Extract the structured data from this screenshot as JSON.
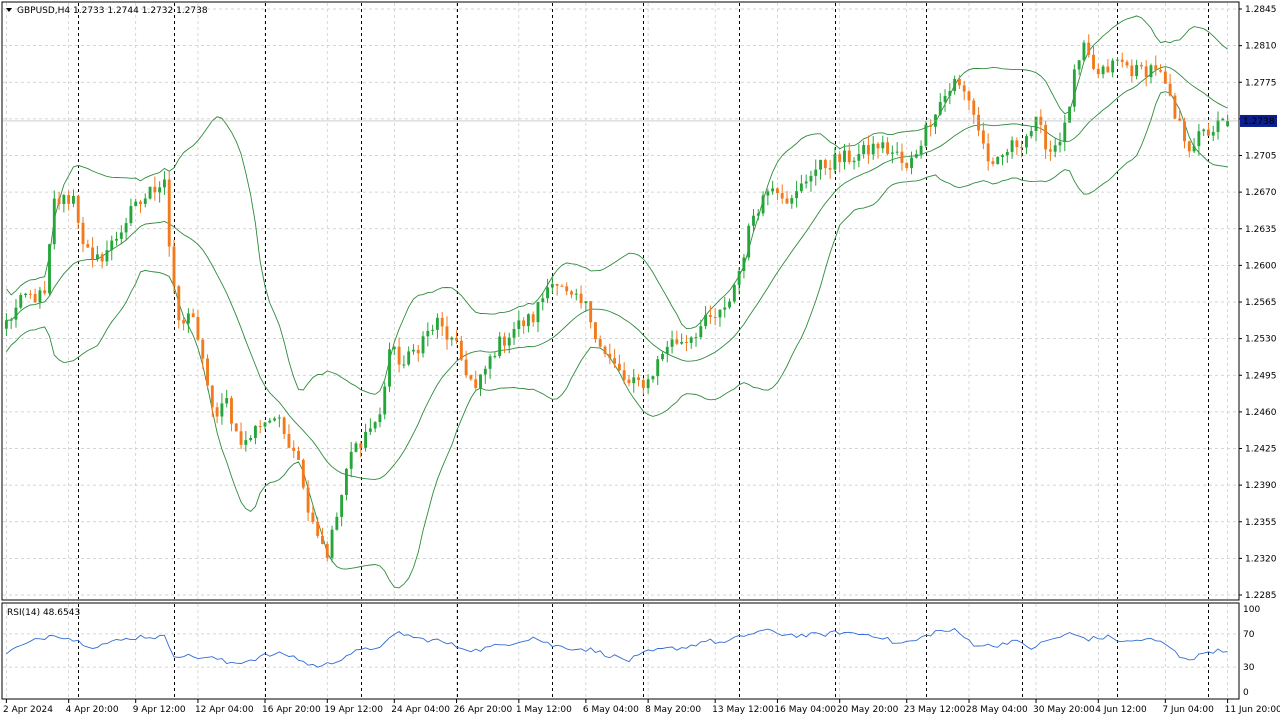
{
  "header": {
    "symbol_line": "GBPUSD,H4  1.2733 1.2744 1.2732 1.2738"
  },
  "rsi_panel": {
    "label": "RSI(14) 48.6543"
  },
  "colors": {
    "bull": "#26a63a",
    "bear": "#f27a1c",
    "band": "#2e8b3d",
    "rsi_line": "#2f6bd6",
    "grid": "#c8c8c8",
    "vline": "#000000",
    "price_tag_bg": "#0a1e8c",
    "price_tag_text": "#ffffff"
  },
  "chart_data": [
    {
      "type": "candlestick",
      "title": "GBPUSD,H4",
      "timeframe": "H4",
      "last_quote": {
        "open": 1.2733,
        "high": 1.2744,
        "low": 1.2732,
        "close": 1.2738
      },
      "current_price_label": "1.2738",
      "ylim": [
        1.2285,
        1.2845
      ],
      "y_ticks": [
        "1.2845",
        "1.2810",
        "1.2775",
        "1.2740",
        "1.2705",
        "1.2670",
        "1.2635",
        "1.2600",
        "1.2565",
        "1.2530",
        "1.2495",
        "1.2460",
        "1.2425",
        "1.2390",
        "1.2355",
        "1.2320",
        "1.2285"
      ],
      "x_ticks": [
        "2 Apr 2024",
        "4 Apr 20:00",
        "9 Apr 12:00",
        "12 Apr 04:00",
        "16 Apr 20:00",
        "19 Apr 12:00",
        "24 Apr 04:00",
        "26 Apr 20:00",
        "1 May 12:00",
        "6 May 04:00",
        "8 May 20:00",
        "13 May 12:00",
        "16 May 04:00",
        "20 May 20:00",
        "23 May 12:00",
        "28 May 04:00",
        "30 May 20:00",
        "4 Jun 12:00",
        "7 Jun 04:00",
        "11 Jun 20:00"
      ],
      "grid": true,
      "indicator": "Bollinger Bands",
      "close_path": [
        [
          0,
          1.2545
        ],
        [
          4,
          1.257
        ],
        [
          8,
          1.257
        ],
        [
          10,
          1.266
        ],
        [
          14,
          1.2665
        ],
        [
          16,
          1.2625
        ],
        [
          18,
          1.26
        ],
        [
          22,
          1.262
        ],
        [
          26,
          1.265
        ],
        [
          30,
          1.267
        ],
        [
          33,
          1.2685
        ],
        [
          34,
          1.262
        ],
        [
          36,
          1.254
        ],
        [
          39,
          1.2555
        ],
        [
          42,
          1.248
        ],
        [
          44,
          1.2455
        ],
        [
          46,
          1.247
        ],
        [
          48,
          1.244
        ],
        [
          50,
          1.243
        ],
        [
          53,
          1.245
        ],
        [
          56,
          1.2455
        ],
        [
          58,
          1.244
        ],
        [
          61,
          1.242
        ],
        [
          62,
          1.2385
        ],
        [
          65,
          1.2345
        ],
        [
          67,
          1.2325
        ],
        [
          69,
          1.236
        ],
        [
          72,
          1.242
        ],
        [
          75,
          1.244
        ],
        [
          78,
          1.2455
        ],
        [
          80,
          1.252
        ],
        [
          83,
          1.2505
        ],
        [
          87,
          1.253
        ],
        [
          90,
          1.2545
        ],
        [
          94,
          1.252
        ],
        [
          98,
          1.248
        ],
        [
          102,
          1.252
        ],
        [
          106,
          1.254
        ],
        [
          110,
          1.255
        ],
        [
          114,
          1.259
        ],
        [
          117,
          1.257
        ],
        [
          121,
          1.256
        ],
        [
          125,
          1.2515
        ],
        [
          130,
          1.2485
        ],
        [
          134,
          1.249
        ],
        [
          138,
          1.2525
        ],
        [
          142,
          1.253
        ],
        [
          146,
          1.2545
        ],
        [
          150,
          1.2555
        ],
        [
          153,
          1.2595
        ],
        [
          156,
          1.265
        ],
        [
          160,
          1.268
        ],
        [
          164,
          1.266
        ],
        [
          168,
          1.269
        ],
        [
          173,
          1.27
        ],
        [
          178,
          1.2705
        ],
        [
          182,
          1.2715
        ],
        [
          186,
          1.2705
        ],
        [
          188,
          1.269
        ],
        [
          190,
          1.271
        ],
        [
          194,
          1.275
        ],
        [
          198,
          1.2775
        ],
        [
          201,
          1.276
        ],
        [
          204,
          1.2715
        ],
        [
          206,
          1.269
        ],
        [
          209,
          1.271
        ],
        [
          212,
          1.272
        ],
        [
          215,
          1.2735
        ],
        [
          218,
          1.271
        ],
        [
          221,
          1.273
        ],
        [
          223,
          1.278
        ],
        [
          225,
          1.2805
        ],
        [
          228,
          1.278
        ],
        [
          232,
          1.2795
        ],
        [
          236,
          1.2785
        ],
        [
          240,
          1.279
        ],
        [
          242,
          1.277
        ],
        [
          244,
          1.274
        ],
        [
          247,
          1.2715
        ],
        [
          250,
          1.2725
        ],
        [
          253,
          1.2733
        ],
        [
          255,
          1.2738
        ]
      ],
      "bars_in_window": 256
    },
    {
      "type": "line",
      "title": "RSI(14)",
      "current_value": 48.6543,
      "ylim": [
        0,
        100
      ],
      "y_ticks": [
        "100",
        "70",
        "30",
        "0"
      ],
      "levels": [
        70,
        30
      ],
      "path": [
        [
          0,
          48
        ],
        [
          6,
          62
        ],
        [
          10,
          70
        ],
        [
          14,
          63
        ],
        [
          18,
          55
        ],
        [
          22,
          60
        ],
        [
          28,
          67
        ],
        [
          33,
          66
        ],
        [
          35,
          45
        ],
        [
          40,
          42
        ],
        [
          44,
          40
        ],
        [
          46,
          35
        ],
        [
          50,
          37
        ],
        [
          54,
          44
        ],
        [
          58,
          46
        ],
        [
          61,
          40
        ],
        [
          63,
          33
        ],
        [
          66,
          31
        ],
        [
          69,
          38
        ],
        [
          72,
          47
        ],
        [
          76,
          52
        ],
        [
          79,
          58
        ],
        [
          82,
          72
        ],
        [
          86,
          64
        ],
        [
          90,
          62
        ],
        [
          94,
          55
        ],
        [
          98,
          50
        ],
        [
          102,
          55
        ],
        [
          106,
          60
        ],
        [
          110,
          66
        ],
        [
          114,
          56
        ],
        [
          118,
          53
        ],
        [
          122,
          51
        ],
        [
          126,
          44
        ],
        [
          130,
          38
        ],
        [
          134,
          48
        ],
        [
          138,
          52
        ],
        [
          142,
          54
        ],
        [
          146,
          62
        ],
        [
          150,
          59
        ],
        [
          154,
          68
        ],
        [
          158,
          74
        ],
        [
          162,
          70
        ],
        [
          166,
          68
        ],
        [
          170,
          69
        ],
        [
          174,
          72
        ],
        [
          178,
          70
        ],
        [
          182,
          68
        ],
        [
          186,
          58
        ],
        [
          190,
          62
        ],
        [
          194,
          73
        ],
        [
          198,
          74
        ],
        [
          202,
          58
        ],
        [
          206,
          55
        ],
        [
          210,
          62
        ],
        [
          214,
          53
        ],
        [
          218,
          63
        ],
        [
          222,
          70
        ],
        [
          226,
          64
        ],
        [
          230,
          66
        ],
        [
          234,
          60
        ],
        [
          238,
          64
        ],
        [
          242,
          58
        ],
        [
          245,
          43
        ],
        [
          248,
          40
        ],
        [
          251,
          50
        ],
        [
          255,
          48.6543
        ]
      ]
    }
  ]
}
